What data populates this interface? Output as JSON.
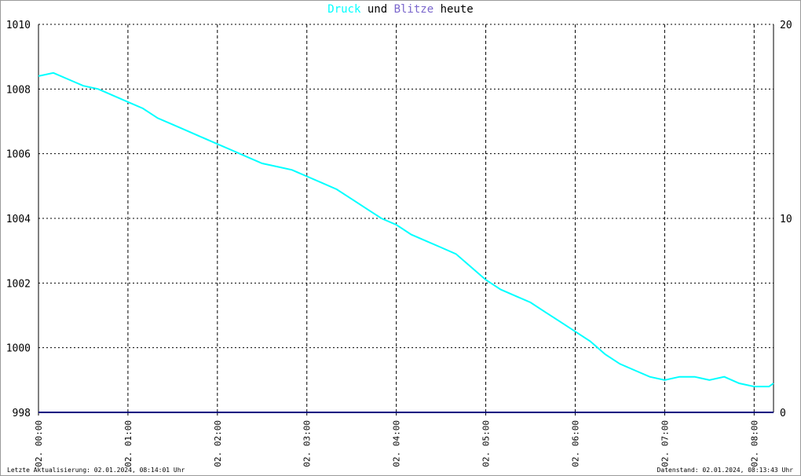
{
  "title": {
    "part1": "Druck",
    "part2": " und ",
    "part3": "Blitze",
    "part4": " heute"
  },
  "colors": {
    "druck": "#00ffff",
    "blitze": "#000080",
    "grid": "#000000"
  },
  "footer": {
    "left": "Letzte Aktualisierung: 02.01.2024, 08:14:01 Uhr",
    "right": "Datenstand: 02.01.2024, 08:13:43 Uhr"
  },
  "chart_data": {
    "type": "line",
    "grid": true,
    "x_ticks": [
      "02. 00:00",
      "02. 01:00",
      "02. 02:00",
      "02. 03:00",
      "02. 04:00",
      "02. 05:00",
      "02. 06:00",
      "02. 07:00",
      "02. 08:00"
    ],
    "xlim": [
      "00:00",
      "08:13"
    ],
    "y_left": {
      "lim": [
        998,
        1010
      ],
      "ticks": [
        "998",
        "1000",
        "1002",
        "1004",
        "1006",
        "1008",
        "1010"
      ]
    },
    "y_right": {
      "lim": [
        0,
        20
      ],
      "ticks": [
        "0",
        "10",
        "20"
      ]
    },
    "series": [
      {
        "name": "Druck",
        "axis": "left",
        "x": [
          "00:00",
          "00:10",
          "00:20",
          "00:30",
          "00:40",
          "00:50",
          "01:00",
          "01:10",
          "01:20",
          "01:30",
          "01:40",
          "01:50",
          "02:00",
          "02:10",
          "02:20",
          "02:30",
          "02:40",
          "02:50",
          "03:00",
          "03:10",
          "03:20",
          "03:30",
          "03:40",
          "03:50",
          "04:00",
          "04:10",
          "04:20",
          "04:30",
          "04:40",
          "04:50",
          "05:00",
          "05:10",
          "05:20",
          "05:30",
          "05:40",
          "05:50",
          "06:00",
          "06:10",
          "06:20",
          "06:30",
          "06:40",
          "06:50",
          "07:00",
          "07:10",
          "07:20",
          "07:30",
          "07:40",
          "07:50",
          "08:00",
          "08:10",
          "08:13"
        ],
        "values": [
          1008.4,
          1008.5,
          1008.3,
          1008.1,
          1008.0,
          1007.8,
          1007.6,
          1007.4,
          1007.1,
          1006.9,
          1006.7,
          1006.5,
          1006.3,
          1006.1,
          1005.9,
          1005.7,
          1005.6,
          1005.5,
          1005.3,
          1005.1,
          1004.9,
          1004.6,
          1004.3,
          1004.0,
          1003.8,
          1003.5,
          1003.3,
          1003.1,
          1002.9,
          1002.5,
          1002.1,
          1001.8,
          1001.6,
          1001.4,
          1001.1,
          1000.8,
          1000.5,
          1000.2,
          999.8,
          999.5,
          999.3,
          999.1,
          999.0,
          999.1,
          999.1,
          999.0,
          999.1,
          998.9,
          998.8,
          998.8,
          998.9
        ]
      },
      {
        "name": "Blitze",
        "axis": "right",
        "x": [
          "00:00",
          "08:13"
        ],
        "values": [
          0,
          0
        ]
      }
    ]
  }
}
